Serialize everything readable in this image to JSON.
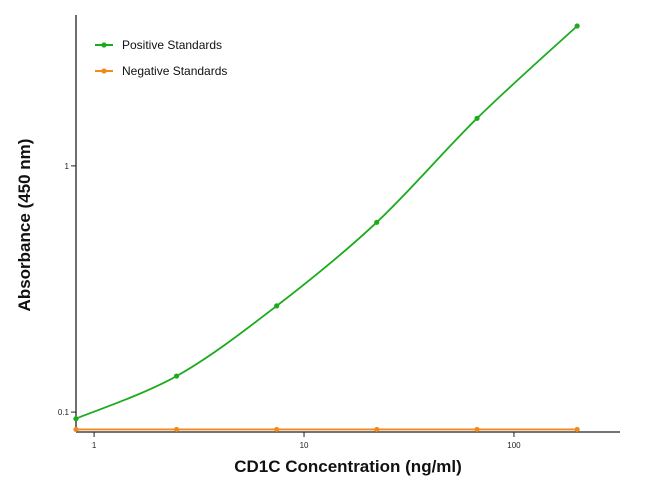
{
  "chart_data": {
    "type": "line",
    "xlabel": "CD1C Concentration (ng/ml)",
    "ylabel": "Absorbance (450 nm)",
    "xscale": "log",
    "yscale": "log",
    "xlim": [
      0.82,
      320
    ],
    "ylim": [
      0.083,
      4.1
    ],
    "xticks": [
      1,
      10,
      100
    ],
    "xtick_labels": [
      "1",
      "10",
      "100"
    ],
    "yticks": [
      0.1,
      1
    ],
    "ytick_labels": [
      "0.1",
      "1"
    ],
    "grid": false,
    "legend_position": "top-left",
    "series": [
      {
        "name": "Positive Standards",
        "color": "#1cab1c",
        "marker": "circle",
        "fit": "smooth-curve",
        "x": [
          0.82,
          2.47,
          7.41,
          22.2,
          66.7,
          200
        ],
        "y": [
          0.094,
          0.14,
          0.27,
          0.59,
          1.56,
          3.7
        ]
      },
      {
        "name": "Negative Standards",
        "color": "#f0891e",
        "marker": "circle",
        "fit": "line",
        "x": [
          0.82,
          2.47,
          7.41,
          22.2,
          66.7,
          200
        ],
        "y": [
          0.085,
          0.085,
          0.085,
          0.085,
          0.085,
          0.085
        ]
      }
    ]
  }
}
